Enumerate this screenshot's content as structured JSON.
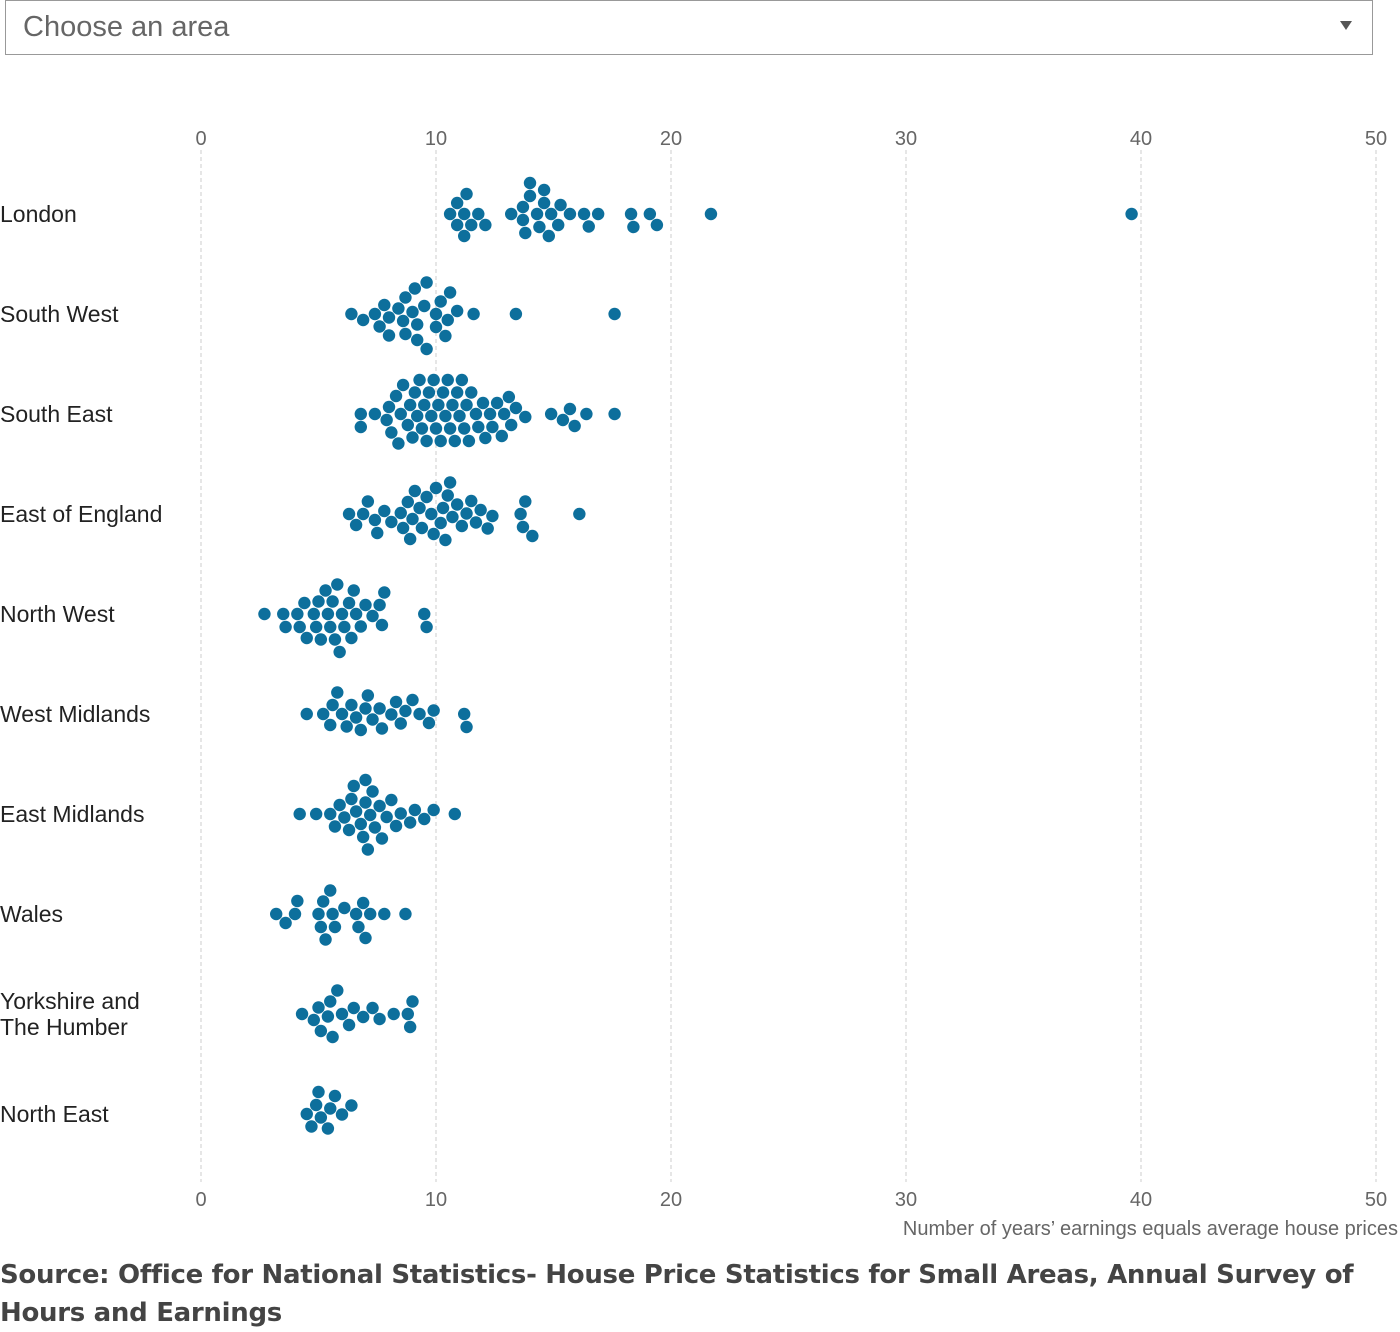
{
  "dropdown_placeholder": "Choose an area",
  "chart_data": {
    "type": "beeswarm",
    "x_label": "Number of years’ earnings equals average house prices",
    "xlim": [
      0,
      50
    ],
    "xticks": [
      0,
      10,
      20,
      30,
      40,
      50
    ],
    "grid": true,
    "color": "#0d6f9c",
    "series": [
      {
        "name": "London",
        "values": [
          10.6,
          10.9,
          10.9,
          11.2,
          11.2,
          11.3,
          11.5,
          11.8,
          12.1,
          13.2,
          13.7,
          13.7,
          13.8,
          14.0,
          14.0,
          14.3,
          14.4,
          14.6,
          14.6,
          14.8,
          14.9,
          15.2,
          15.3,
          15.7,
          16.3,
          16.5,
          16.9,
          18.3,
          18.4,
          19.1,
          19.4,
          21.7,
          39.6
        ]
      },
      {
        "name": "South West",
        "values": [
          6.4,
          6.9,
          7.4,
          7.6,
          7.8,
          8.0,
          8.0,
          8.4,
          8.6,
          8.7,
          8.7,
          9.0,
          9.1,
          9.2,
          9.2,
          9.5,
          9.6,
          9.6,
          10.0,
          10.0,
          10.2,
          10.4,
          10.5,
          10.6,
          10.9,
          11.6,
          13.4,
          17.6
        ]
      },
      {
        "name": "South East",
        "values": [
          6.8,
          6.8,
          7.4,
          7.9,
          8.0,
          8.1,
          8.3,
          8.4,
          8.5,
          8.6,
          8.8,
          8.9,
          9.0,
          9.1,
          9.2,
          9.3,
          9.4,
          9.5,
          9.6,
          9.7,
          9.8,
          9.9,
          10.0,
          10.1,
          10.2,
          10.3,
          10.4,
          10.5,
          10.6,
          10.7,
          10.8,
          10.9,
          11.0,
          11.1,
          11.2,
          11.3,
          11.4,
          11.5,
          11.7,
          11.8,
          12.0,
          12.1,
          12.3,
          12.4,
          12.6,
          12.8,
          12.9,
          13.1,
          13.2,
          13.4,
          13.8,
          14.9,
          15.4,
          15.7,
          15.9,
          16.4,
          17.6
        ]
      },
      {
        "name": "East of England",
        "values": [
          6.3,
          6.6,
          6.9,
          7.1,
          7.4,
          7.5,
          7.8,
          8.1,
          8.5,
          8.6,
          8.8,
          8.9,
          9.0,
          9.1,
          9.3,
          9.4,
          9.6,
          9.8,
          9.9,
          10.0,
          10.2,
          10.3,
          10.4,
          10.5,
          10.6,
          10.7,
          10.9,
          11.1,
          11.3,
          11.5,
          11.7,
          11.9,
          12.2,
          12.4,
          13.6,
          13.7,
          13.8,
          14.1,
          16.1
        ]
      },
      {
        "name": "North West",
        "values": [
          2.7,
          3.5,
          3.6,
          4.1,
          4.2,
          4.4,
          4.5,
          4.8,
          4.9,
          5.0,
          5.1,
          5.3,
          5.4,
          5.5,
          5.6,
          5.7,
          5.8,
          5.9,
          6.0,
          6.1,
          6.3,
          6.4,
          6.5,
          6.6,
          6.8,
          7.0,
          7.3,
          7.6,
          7.7,
          7.8,
          9.5,
          9.6
        ]
      },
      {
        "name": "West Midlands",
        "values": [
          4.5,
          5.2,
          5.5,
          5.6,
          5.8,
          6.0,
          6.2,
          6.4,
          6.6,
          6.8,
          7.0,
          7.1,
          7.3,
          7.6,
          7.7,
          8.1,
          8.3,
          8.5,
          8.7,
          9.0,
          9.3,
          9.7,
          9.9,
          11.2,
          11.3
        ]
      },
      {
        "name": "East Midlands",
        "values": [
          4.2,
          4.9,
          5.5,
          5.7,
          5.9,
          6.1,
          6.3,
          6.4,
          6.5,
          6.6,
          6.8,
          6.9,
          7.0,
          7.0,
          7.1,
          7.2,
          7.3,
          7.4,
          7.6,
          7.7,
          7.9,
          8.1,
          8.3,
          8.5,
          8.9,
          9.1,
          9.5,
          9.9,
          10.8
        ]
      },
      {
        "name": "Wales",
        "values": [
          3.2,
          3.6,
          4.0,
          4.1,
          5.0,
          5.1,
          5.2,
          5.3,
          5.5,
          5.6,
          5.7,
          6.1,
          6.6,
          6.7,
          6.9,
          7.0,
          7.2,
          7.8,
          8.7
        ]
      },
      {
        "name": "Yorkshire and The Humber",
        "values": [
          4.3,
          4.8,
          5.0,
          5.1,
          5.4,
          5.5,
          5.6,
          5.8,
          6.0,
          6.3,
          6.5,
          6.9,
          7.3,
          7.6,
          8.2,
          8.8,
          8.9,
          9.0
        ]
      },
      {
        "name": "North East",
        "values": [
          4.5,
          4.7,
          4.9,
          5.0,
          5.1,
          5.4,
          5.5,
          5.7,
          6.0,
          6.4
        ]
      }
    ]
  },
  "source": "Source: Office for National Statistics- House Price Statistics for Small Areas, Annual Survey of Hours and Earnings"
}
